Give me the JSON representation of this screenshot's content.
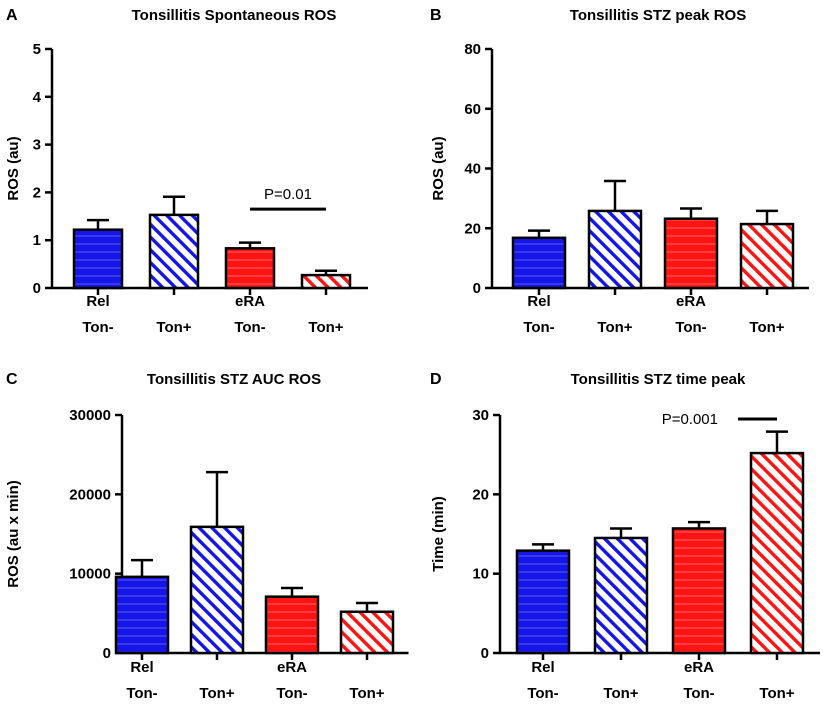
{
  "figure": {
    "colors": {
      "blue": "#1515e8",
      "red": "#ff1414",
      "axis": "#000000",
      "background": "#ffffff"
    }
  },
  "chart_data": [
    {
      "type": "bar",
      "panel": "A",
      "title": "Tonsillitis Spontaneous ROS",
      "ylabel": "ROS (au)",
      "xlabel": "",
      "ylim": [
        0,
        5
      ],
      "yticks": [
        0,
        1,
        2,
        3,
        4,
        5
      ],
      "categories": [
        {
          "line1": "Rel",
          "line2": "Ton-"
        },
        {
          "line1": "",
          "line2": "Ton+"
        },
        {
          "line1": "eRA",
          "line2": "Ton-"
        },
        {
          "line1": "",
          "line2": "Ton+"
        }
      ],
      "values": [
        1.22,
        1.53,
        0.83,
        0.27
      ],
      "errors": [
        0.2,
        0.38,
        0.12,
        0.09
      ],
      "fills": [
        "blue-solid",
        "blue-hatch",
        "red-solid",
        "red-hatch"
      ],
      "significance": {
        "label": "P=0.01",
        "from": 2,
        "to": 3,
        "y": 1.65
      }
    },
    {
      "type": "bar",
      "panel": "B",
      "title": "Tonsillitis STZ peak ROS",
      "ylabel": "ROS (au)",
      "xlabel": "",
      "ylim": [
        0,
        80
      ],
      "yticks": [
        0,
        20,
        40,
        60,
        80
      ],
      "categories": [
        {
          "line1": "Rel",
          "line2": "Ton-"
        },
        {
          "line1": "",
          "line2": "Ton+"
        },
        {
          "line1": "eRA",
          "line2": "Ton-"
        },
        {
          "line1": "",
          "line2": "Ton+"
        }
      ],
      "values": [
        16.8,
        25.8,
        23.2,
        21.4
      ],
      "errors": [
        2.4,
        10.0,
        3.4,
        4.4
      ],
      "fills": [
        "blue-solid",
        "blue-hatch",
        "red-solid",
        "red-hatch"
      ]
    },
    {
      "type": "bar",
      "panel": "C",
      "title": "Tonsillitis STZ AUC ROS",
      "ylabel": "ROS (au x min)",
      "xlabel": "",
      "ylim": [
        0,
        30000
      ],
      "yticks": [
        0,
        10000,
        20000,
        30000
      ],
      "categories": [
        {
          "line1": "Rel",
          "line2": "Ton-"
        },
        {
          "line1": "",
          "line2": "Ton+"
        },
        {
          "line1": "eRA",
          "line2": "Ton-"
        },
        {
          "line1": "",
          "line2": "Ton+"
        }
      ],
      "values": [
        9600,
        15900,
        7100,
        5200
      ],
      "errors": [
        2100,
        6900,
        1100,
        1100
      ],
      "fills": [
        "blue-solid",
        "blue-hatch",
        "red-solid",
        "red-hatch"
      ]
    },
    {
      "type": "bar",
      "panel": "D",
      "title": "Tonsillitis STZ time peak",
      "ylabel": "Time (min)",
      "xlabel": "",
      "ylim": [
        0,
        30
      ],
      "yticks": [
        0,
        10,
        20,
        30
      ],
      "categories": [
        {
          "line1": "Rel",
          "line2": "Ton-"
        },
        {
          "line1": "",
          "line2": "Ton+"
        },
        {
          "line1": "eRA",
          "line2": "Ton-"
        },
        {
          "line1": "",
          "line2": "Ton+"
        }
      ],
      "values": [
        12.9,
        14.5,
        15.7,
        25.2
      ],
      "errors": [
        0.8,
        1.2,
        0.8,
        2.7
      ],
      "fills": [
        "blue-solid",
        "blue-hatch",
        "red-solid",
        "red-hatch"
      ],
      "significance": {
        "label": "P=0.001",
        "from": 2.5,
        "to": 3,
        "y": 29.5,
        "label_side": "left"
      }
    }
  ]
}
